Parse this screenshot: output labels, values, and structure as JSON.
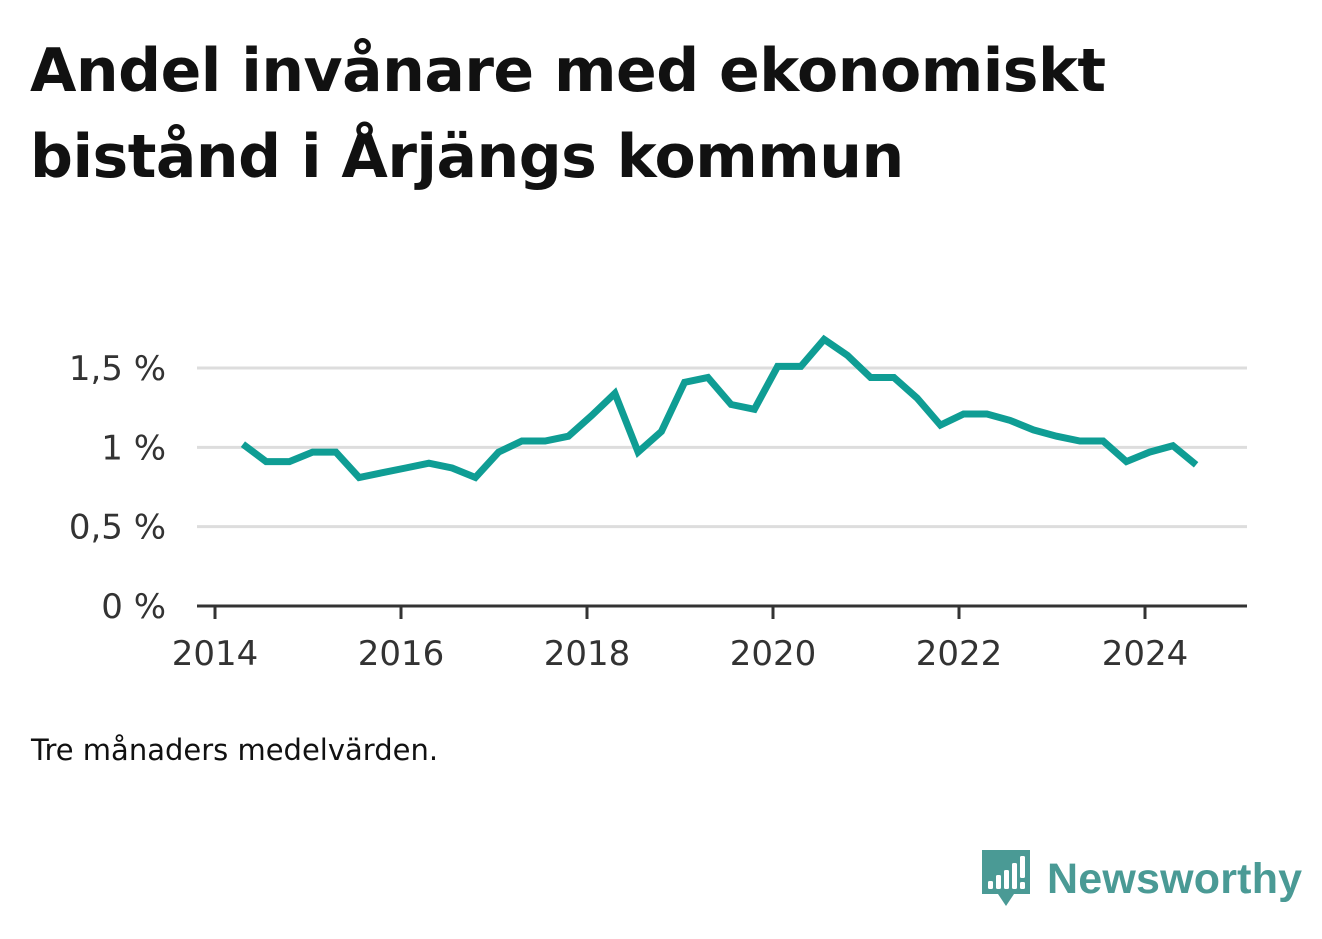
{
  "title": "Andel invånare med ekonomiskt bistånd i Årjängs kommun",
  "footnote": "Tre månaders medelvärden.",
  "brand": {
    "name": "Newsworthy",
    "logo_icon": "bar-chart-speech-bubble-icon",
    "color": "#4a9a95"
  },
  "chart_data": {
    "type": "line",
    "title": "Andel invånare med ekonomiskt bistånd i Årjängs kommun",
    "xlabel": "",
    "ylabel": "",
    "line_color": "#0f9d94",
    "grid": true,
    "xlim": [
      2014,
      2025.1
    ],
    "ylim": [
      0,
      1.5
    ],
    "x_ticks": [
      {
        "value": 2014,
        "label": "2014"
      },
      {
        "value": 2016,
        "label": "2016"
      },
      {
        "value": 2018,
        "label": "2018"
      },
      {
        "value": 2020,
        "label": "2020"
      },
      {
        "value": 2022,
        "label": "2022"
      },
      {
        "value": 2024,
        "label": "2024"
      }
    ],
    "y_ticks": [
      {
        "value": 0,
        "label": "0 %"
      },
      {
        "value": 0.5,
        "label": "0,5 %"
      },
      {
        "value": 1,
        "label": "1 %"
      },
      {
        "value": 1.5,
        "label": "1,5 %"
      }
    ],
    "x": [
      2014.3,
      2014.55,
      2014.8,
      2015.05,
      2015.3,
      2015.55,
      2015.8,
      2016.05,
      2016.3,
      2016.55,
      2016.8,
      2017.05,
      2017.3,
      2017.55,
      2017.8,
      2018.05,
      2018.3,
      2018.55,
      2018.8,
      2019.05,
      2019.3,
      2019.55,
      2019.8,
      2020.05,
      2020.3,
      2020.55,
      2020.8,
      2021.05,
      2021.3,
      2021.55,
      2021.8,
      2022.05,
      2022.3,
      2022.55,
      2022.8,
      2023.05,
      2023.3,
      2023.55,
      2023.8,
      2024.05,
      2024.3,
      2024.55
    ],
    "values": [
      1.02,
      0.91,
      0.91,
      0.97,
      0.97,
      0.81,
      0.84,
      0.87,
      0.9,
      0.87,
      0.81,
      0.97,
      1.04,
      1.04,
      1.07,
      1.2,
      1.34,
      0.97,
      1.1,
      1.41,
      1.44,
      1.27,
      1.24,
      1.51,
      1.51,
      1.68,
      1.58,
      1.44,
      1.44,
      1.31,
      1.14,
      1.21,
      1.21,
      1.17,
      1.11,
      1.07,
      1.04,
      1.04,
      0.91,
      0.97,
      1.01,
      0.89
    ]
  }
}
